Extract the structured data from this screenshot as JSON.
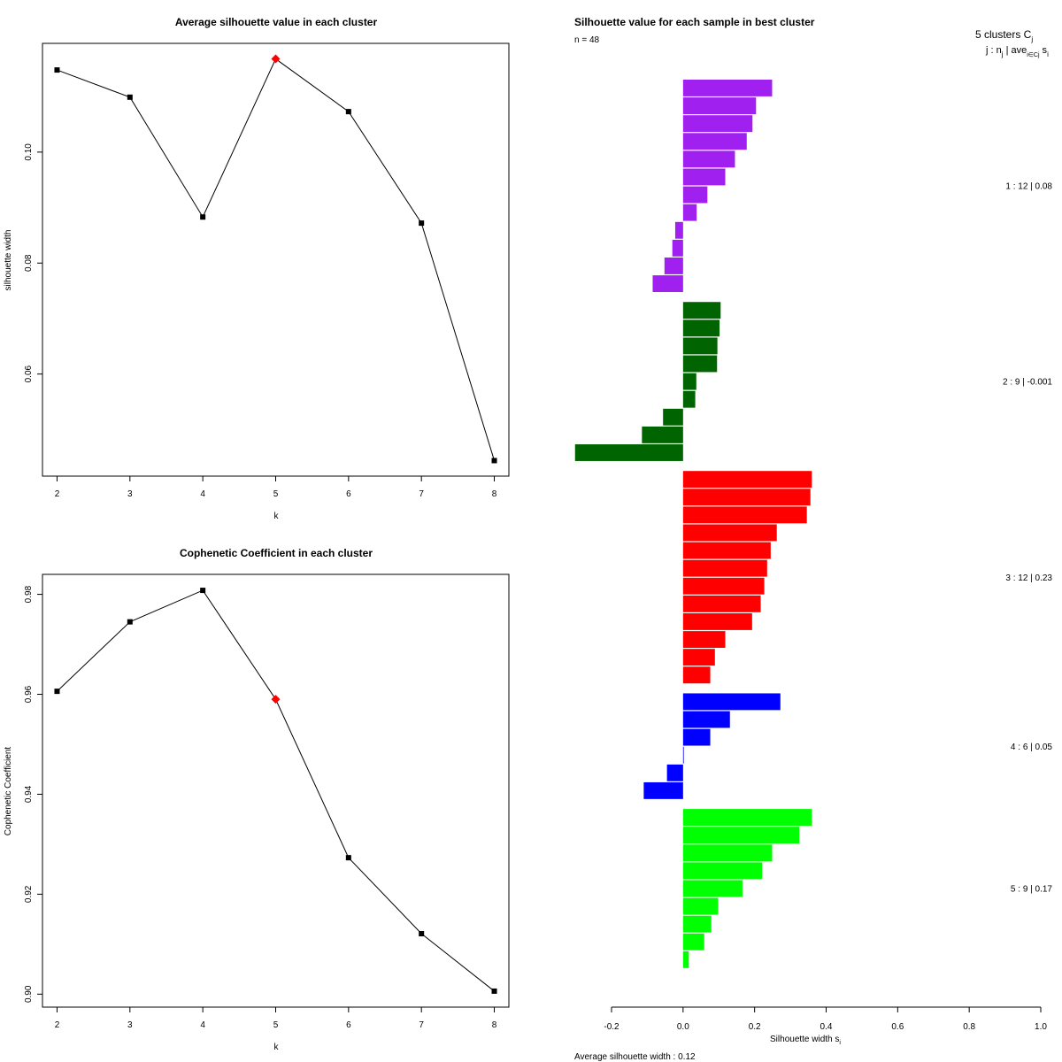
{
  "chart_data": [
    {
      "type": "line",
      "title": "Average silhouette value in each cluster",
      "xlabel": "k",
      "ylabel": "silhouette width",
      "x": [
        2,
        3,
        4,
        5,
        6,
        7,
        8
      ],
      "values": [
        0.1148,
        0.1099,
        0.0883,
        0.1168,
        0.1073,
        0.0872,
        0.0444
      ],
      "highlight_x": 5,
      "xlim": [
        1.8,
        8.2
      ],
      "ylim": [
        0.0416,
        0.1196
      ],
      "x_ticks": [
        "2",
        "3",
        "4",
        "5",
        "6",
        "7",
        "8"
      ],
      "y_ticks": [
        "0.06",
        "0.08",
        "0.10"
      ],
      "y_tick_values": [
        0.06,
        0.08,
        0.1
      ]
    },
    {
      "type": "line",
      "title": "Cophenetic Coefficient in each cluster",
      "xlabel": "k",
      "ylabel": "Cophenetic Coefficient",
      "x": [
        2,
        3,
        4,
        5,
        6,
        7,
        8
      ],
      "values": [
        0.9606,
        0.9745,
        0.9808,
        0.959,
        0.9273,
        0.9121,
        0.9006
      ],
      "highlight_x": 5,
      "xlim": [
        1.8,
        8.2
      ],
      "ylim": [
        0.8974,
        0.984
      ],
      "x_ticks": [
        "2",
        "3",
        "4",
        "5",
        "6",
        "7",
        "8"
      ],
      "y_ticks": [
        "0.90",
        "0.92",
        "0.94",
        "0.96",
        "0.98"
      ],
      "y_tick_values": [
        0.9,
        0.92,
        0.94,
        0.96,
        0.98
      ]
    },
    {
      "type": "bar",
      "orientation": "horizontal",
      "title": "Silhouette value for each sample in best cluster",
      "n_label": "n = 48",
      "header_line1": "5  clusters  C",
      "header_line1_sub": "j",
      "header_line2": "j :  n",
      "header_line2_sub1": "j",
      "header_line2_mid": " | ave",
      "header_line2_sub2": "i∈Cj",
      "header_line2_end": " s",
      "header_line2_sub3": "i",
      "xlabel": "Silhouette width s",
      "xlabel_sub": "i",
      "footer": "Average silhouette width :  0.12",
      "xlim": [
        -0.2,
        1.0
      ],
      "x_ticks": [
        "-0.2",
        "0.0",
        "0.2",
        "0.4",
        "0.6",
        "0.8",
        "1.0"
      ],
      "x_tick_values": [
        -0.2,
        0.0,
        0.2,
        0.4,
        0.6,
        0.8,
        1.0
      ],
      "clusters": [
        {
          "label": "1 :   12  |  0.08",
          "color": "#A020F0",
          "values": [
            0.249,
            0.204,
            0.194,
            0.178,
            0.145,
            0.118,
            0.068,
            0.038,
            -0.022,
            -0.03,
            -0.052,
            -0.085
          ]
        },
        {
          "label": "2 :   9  |  -0.001",
          "color": "#006400",
          "values": [
            0.105,
            0.102,
            0.096,
            0.095,
            0.037,
            0.034,
            -0.056,
            -0.115,
            -0.302
          ]
        },
        {
          "label": "3 :   12  |  0.23",
          "color": "#FF0000",
          "values": [
            0.36,
            0.356,
            0.346,
            0.262,
            0.245,
            0.235,
            0.227,
            0.217,
            0.193,
            0.118,
            0.089,
            0.076
          ]
        },
        {
          "label": "4 :   6  |  0.05",
          "color": "#0000FF",
          "values": [
            0.272,
            0.131,
            0.076,
            0.002,
            -0.045,
            -0.11
          ]
        },
        {
          "label": "5 :   9  |  0.17",
          "color": "#00FF00",
          "values": [
            0.36,
            0.325,
            0.249,
            0.221,
            0.166,
            0.098,
            0.079,
            0.059,
            0.016
          ]
        }
      ]
    }
  ]
}
